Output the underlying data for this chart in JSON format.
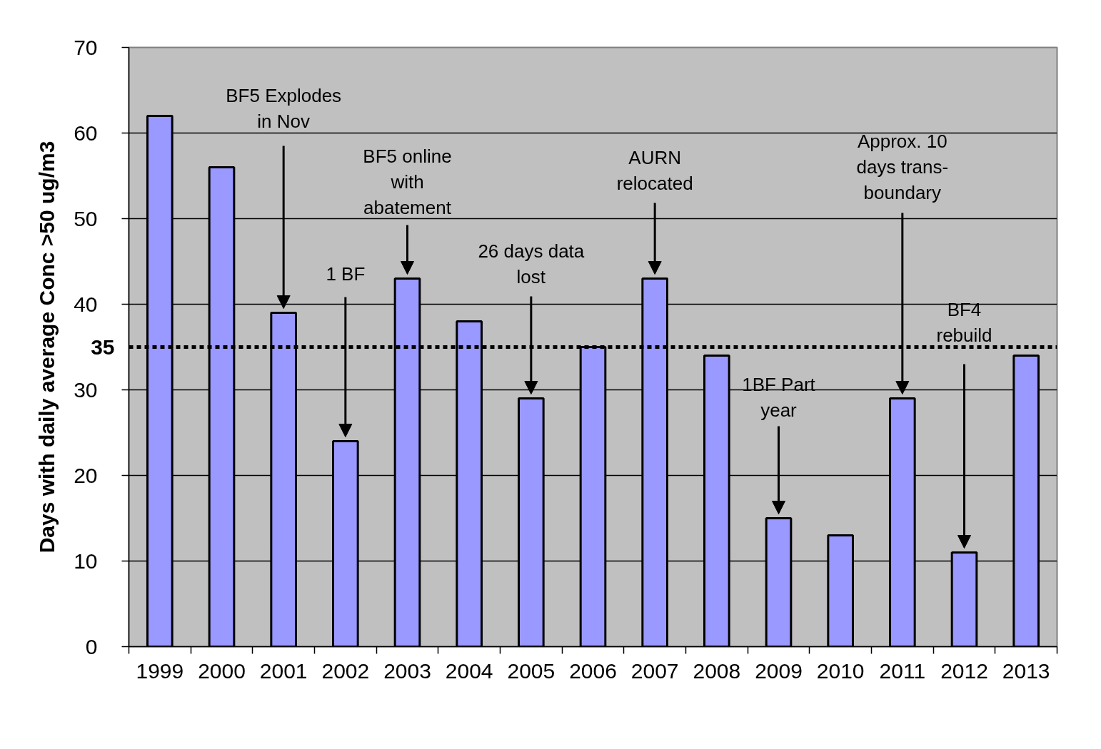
{
  "chart_data": {
    "type": "bar",
    "categories": [
      "1999",
      "2000",
      "2001",
      "2002",
      "2003",
      "2004",
      "2005",
      "2006",
      "2007",
      "2008",
      "2009",
      "2010",
      "2011",
      "2012",
      "2013"
    ],
    "values": [
      62,
      56,
      39,
      24,
      43,
      38,
      29,
      35,
      43,
      34,
      15,
      13,
      29,
      11,
      34
    ],
    "color": "#9999ff",
    "ylabel": "Days with daily average Conc >50 ug/m3",
    "ylim": [
      0,
      70
    ],
    "yticks": [
      0,
      10,
      20,
      30,
      40,
      50,
      60,
      70
    ],
    "grid": "y",
    "ref_lines": [
      {
        "axis": "y",
        "value": 35,
        "label": "35",
        "color": "#000000",
        "line_style": "dotted"
      }
    ],
    "annotations": [
      {
        "text": "BF5 Explodes\nin Nov",
        "x": "2001",
        "y": 39
      },
      {
        "text": "1 BF",
        "x": "2002",
        "y": 24
      },
      {
        "text": "BF5 online\nwith\nabatement",
        "x": "2003",
        "y": 43
      },
      {
        "text": "26 days data\nlost",
        "x": "2005",
        "y": 29
      },
      {
        "text": "AURN\nrelocated",
        "x": "2007",
        "y": 43
      },
      {
        "text": "1BF Part\nyear",
        "x": "2009",
        "y": 15
      },
      {
        "text": "Approx. 10\ndays trans-\nboundary",
        "x": "2011",
        "y": 29
      },
      {
        "text": "BF4\nrebuild",
        "x": "2012",
        "y": 11
      }
    ]
  }
}
